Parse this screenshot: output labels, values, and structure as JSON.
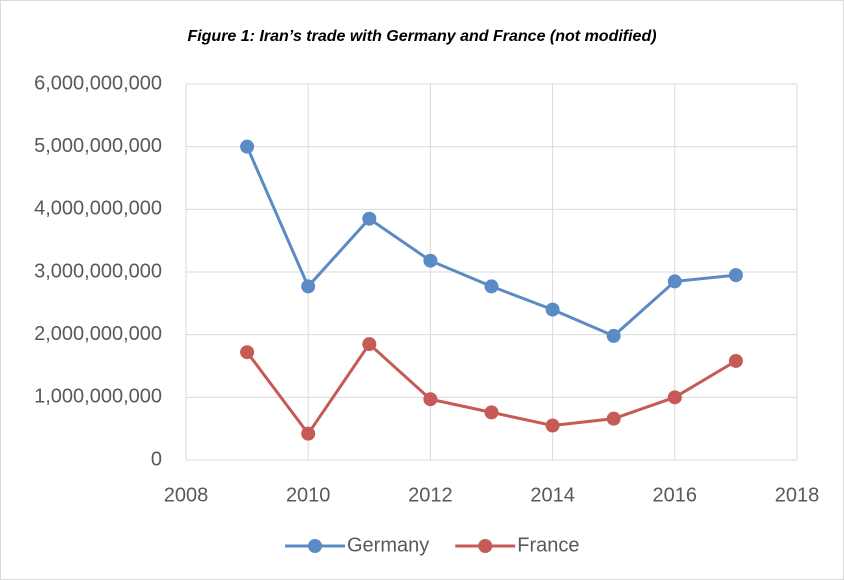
{
  "chart_data": {
    "type": "line",
    "title": "Figure 1: Iran’s trade with Germany and France (not modified)",
    "x": [
      2009,
      2010,
      2011,
      2012,
      2013,
      2014,
      2015,
      2016,
      2017
    ],
    "series": [
      {
        "name": "Germany",
        "color": "#5b8bc5",
        "values": [
          5000000000,
          2770000000,
          3850000000,
          3180000000,
          2770000000,
          2400000000,
          1980000000,
          2850000000,
          2950000000
        ]
      },
      {
        "name": "France",
        "color": "#c55a57",
        "values": [
          1720000000,
          420000000,
          1850000000,
          970000000,
          760000000,
          550000000,
          660000000,
          1000000000,
          1580000000
        ]
      }
    ],
    "xlim": [
      2008,
      2018
    ],
    "xticks": [
      2008,
      2010,
      2012,
      2014,
      2016,
      2018
    ],
    "ylim": [
      0,
      6000000000
    ],
    "yticks": [
      0,
      {
        "value": 1000000000,
        "label": "1,000,000,000"
      },
      {
        "value": 2000000000,
        "label": "2,000,000,000"
      },
      {
        "value": 3000000000,
        "label": "3,000,000,000"
      },
      {
        "value": 4000000000,
        "label": "4,000,000,000"
      },
      {
        "value": 5000000000,
        "label": "5,000,000,000"
      },
      {
        "value": 6000000000,
        "label": "6,000,000,000"
      }
    ],
    "grid": true,
    "legend": "bottom"
  }
}
